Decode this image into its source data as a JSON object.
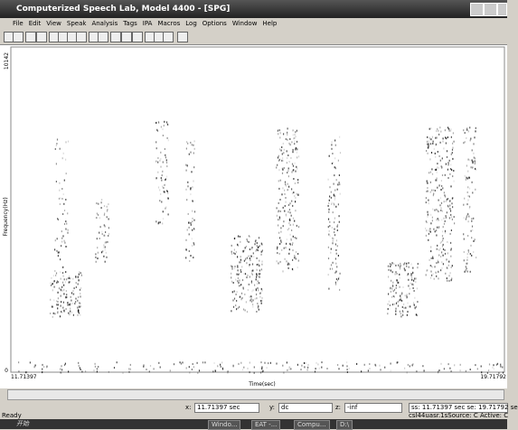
{
  "window": {
    "title": "Computerized Speech Lab, Model 4400 - [SPG]",
    "menu": [
      "File",
      "Edit",
      "View",
      "Speak",
      "Analysis",
      "Tags",
      "IPA",
      "Macros",
      "Log",
      "Options",
      "Window",
      "Help"
    ]
  },
  "plot": {
    "y_top": "10142",
    "y_bottom": "0",
    "y_label": "Frequency(Hz)",
    "x_left": "11.71397",
    "x_label": "Time(sec)",
    "x_right": "19.71792"
  },
  "status": {
    "x_label": "x:",
    "x_value": "11.71397 sec",
    "y_label": "y:",
    "y_value": "dc",
    "z_label": "z:",
    "z_value": "-inf",
    "range": "ss: 11.71397 sec se: 19.71792 se",
    "ready": "Ready",
    "source": "csl44uasr.1sSource: C Active: C"
  },
  "taskbar": {
    "start": "开始",
    "items": [
      "Windo...",
      "EAT -...",
      "Compu...",
      "D:\\"
    ]
  }
}
